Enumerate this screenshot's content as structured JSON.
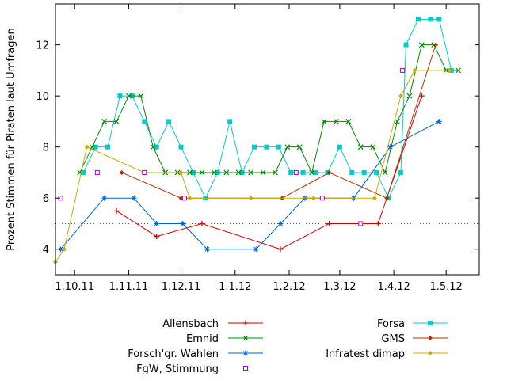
{
  "chart_data": {
    "type": "line",
    "title": "",
    "xlabel": "",
    "ylabel": "Prozent Stimmen für Piraten laut Umfragen",
    "xlim": [
      "2011-09-20",
      "2012-05-20"
    ],
    "ylim": [
      3,
      13.6
    ],
    "yticks": [
      4,
      6,
      8,
      10,
      12
    ],
    "xticks": [
      {
        "date": "2011-10-01",
        "label": "1.10.11"
      },
      {
        "date": "2011-11-01",
        "label": "1.11.11"
      },
      {
        "date": "2011-12-01",
        "label": "1.12.11"
      },
      {
        "date": "2012-01-01",
        "label": "1.1.12"
      },
      {
        "date": "2012-02-01",
        "label": "1.2.12"
      },
      {
        "date": "2012-03-01",
        "label": "1.3.12"
      },
      {
        "date": "2012-04-01",
        "label": "1.4.12"
      },
      {
        "date": "2012-05-01",
        "label": "1.5.12"
      }
    ],
    "reference_line": {
      "y": 5,
      "style": "dotted"
    },
    "grid": false,
    "legend_position": "bottom",
    "series": [
      {
        "name": "Allensbach",
        "color": "#cc0000",
        "marker": "plus",
        "points": [
          [
            "2011-10-25",
            5.5
          ],
          [
            "2011-11-17",
            4.5
          ],
          [
            "2011-12-13",
            5
          ],
          [
            "2012-01-27",
            4
          ],
          [
            "2012-02-24",
            5
          ],
          [
            "2012-03-23",
            5
          ],
          [
            "2012-04-17",
            10
          ]
        ]
      },
      {
        "name": "Forsa",
        "color": "#00cccc",
        "marker": "square",
        "points": [
          [
            "2011-10-06",
            7
          ],
          [
            "2011-10-13",
            8
          ],
          [
            "2011-10-20",
            8
          ],
          [
            "2011-10-27",
            10
          ],
          [
            "2011-11-03",
            10
          ],
          [
            "2011-11-10",
            9
          ],
          [
            "2011-11-17",
            8
          ],
          [
            "2011-11-24",
            9
          ],
          [
            "2011-12-01",
            8
          ],
          [
            "2011-12-08",
            7
          ],
          [
            "2011-12-15",
            6
          ],
          [
            "2011-12-22",
            7
          ],
          [
            "2011-12-29",
            9
          ],
          [
            "2012-01-05",
            7
          ],
          [
            "2012-01-12",
            8
          ],
          [
            "2012-01-19",
            8
          ],
          [
            "2012-01-26",
            8
          ],
          [
            "2012-02-02",
            7
          ],
          [
            "2012-02-09",
            7
          ],
          [
            "2012-02-16",
            7
          ],
          [
            "2012-02-23",
            7
          ],
          [
            "2012-03-01",
            8
          ],
          [
            "2012-03-08",
            7
          ],
          [
            "2012-03-15",
            7
          ],
          [
            "2012-03-22",
            7
          ],
          [
            "2012-03-29",
            6
          ],
          [
            "2012-04-05",
            7
          ],
          [
            "2012-04-08",
            12
          ],
          [
            "2012-04-15",
            13
          ],
          [
            "2012-04-22",
            13
          ],
          [
            "2012-04-27",
            13
          ],
          [
            "2012-05-04",
            11
          ]
        ]
      },
      {
        "name": "Emnid",
        "color": "#008800",
        "marker": "cross",
        "points": [
          [
            "2011-10-04",
            7
          ],
          [
            "2011-10-11",
            8
          ],
          [
            "2011-10-18",
            9
          ],
          [
            "2011-10-25",
            9
          ],
          [
            "2011-11-01",
            10
          ],
          [
            "2011-11-08",
            10
          ],
          [
            "2011-11-15",
            8
          ],
          [
            "2011-11-22",
            7
          ],
          [
            "2011-11-29",
            7
          ],
          [
            "2011-12-06",
            7
          ],
          [
            "2011-12-13",
            7
          ],
          [
            "2011-12-20",
            7
          ],
          [
            "2011-12-27",
            7
          ],
          [
            "2012-01-03",
            7
          ],
          [
            "2012-01-10",
            7
          ],
          [
            "2012-01-17",
            7
          ],
          [
            "2012-01-24",
            7
          ],
          [
            "2012-01-31",
            8
          ],
          [
            "2012-02-07",
            8
          ],
          [
            "2012-02-14",
            7
          ],
          [
            "2012-02-21",
            9
          ],
          [
            "2012-02-28",
            9
          ],
          [
            "2012-03-06",
            9
          ],
          [
            "2012-03-13",
            8
          ],
          [
            "2012-03-20",
            8
          ],
          [
            "2012-03-27",
            7
          ],
          [
            "2012-04-03",
            9
          ],
          [
            "2012-04-10",
            10
          ],
          [
            "2012-04-17",
            12
          ],
          [
            "2012-04-24",
            12
          ],
          [
            "2012-05-01",
            11
          ],
          [
            "2012-05-08",
            11
          ]
        ]
      },
      {
        "name": "GMS",
        "color": "#aa3300",
        "marker": "diamond",
        "points": [
          [
            "2011-10-28",
            7
          ],
          [
            "2011-12-01",
            6
          ],
          [
            "2012-01-28",
            6
          ],
          [
            "2012-02-24",
            7
          ],
          [
            "2012-03-28",
            6
          ],
          [
            "2012-04-25",
            12
          ]
        ]
      },
      {
        "name": "Forsch'gr. Wahlen",
        "color": "#0066cc",
        "marker": "star",
        "points": [
          [
            "2011-09-23",
            4
          ],
          [
            "2011-10-18",
            6
          ],
          [
            "2011-11-04",
            6
          ],
          [
            "2011-11-17",
            5
          ],
          [
            "2011-12-02",
            5
          ],
          [
            "2011-12-16",
            4
          ],
          [
            "2012-01-13",
            4
          ],
          [
            "2012-01-27",
            5
          ],
          [
            "2012-02-10",
            6
          ],
          [
            "2012-03-09",
            6
          ],
          [
            "2012-03-30",
            8
          ],
          [
            "2012-04-27",
            9
          ]
        ]
      },
      {
        "name": "Infratest dimap",
        "color": "#ccaa00",
        "marker": "diamond",
        "points": [
          [
            "2011-09-20",
            3.5
          ],
          [
            "2011-09-25",
            4
          ],
          [
            "2011-10-08",
            8
          ],
          [
            "2011-11-10",
            7
          ],
          [
            "2011-12-01",
            7
          ],
          [
            "2011-12-06",
            6
          ],
          [
            "2012-01-10",
            6
          ],
          [
            "2012-02-15",
            6
          ],
          [
            "2012-02-20",
            6
          ],
          [
            "2012-03-21",
            6
          ],
          [
            "2012-04-05",
            10
          ],
          [
            "2012-04-13",
            11
          ],
          [
            "2012-05-03",
            11
          ]
        ]
      },
      {
        "name": "FgW, Stimmung",
        "color": "#aa00cc",
        "marker": "open-square",
        "line": false,
        "points": [
          [
            "2011-09-23",
            6
          ],
          [
            "2011-10-14",
            7
          ],
          [
            "2011-11-10",
            7
          ],
          [
            "2011-12-03",
            6
          ],
          [
            "2012-02-05",
            7
          ],
          [
            "2012-02-20",
            6
          ],
          [
            "2012-03-13",
            5
          ],
          [
            "2012-04-06",
            11
          ]
        ]
      }
    ]
  }
}
